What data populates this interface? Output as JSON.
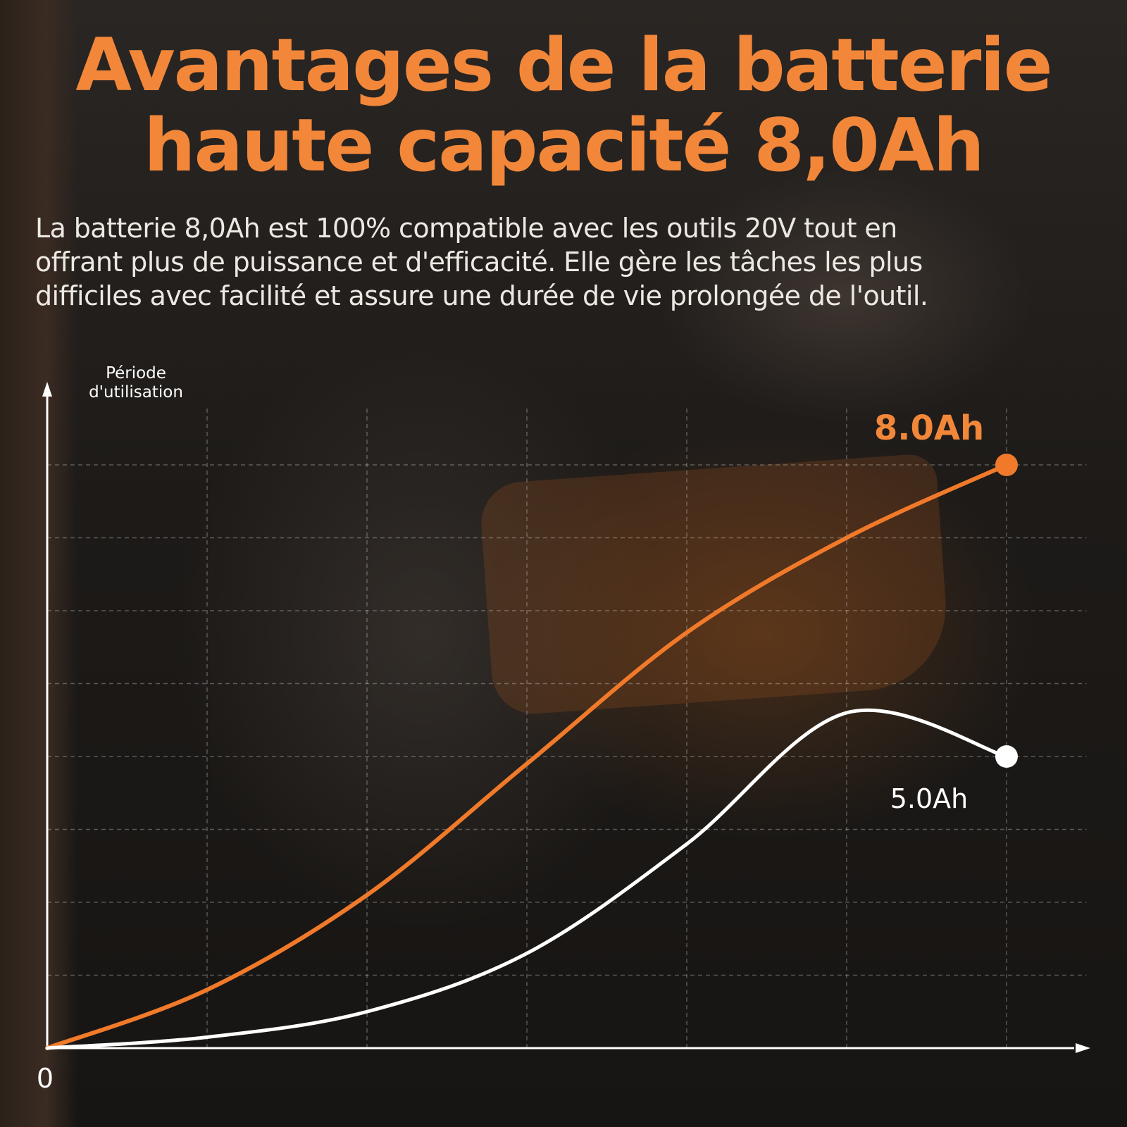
{
  "title_lines": [
    "Avantages de la batterie",
    "haute capacité 8,0Ah"
  ],
  "subtitle_lines": [
    "La batterie 8,0Ah est 100% compatible avec les outils 20V tout en",
    "offrant plus de puissance et d'efficacité. Elle gère les tâches les plus",
    "difficiles avec facilité et assure une durée de vie prolongée de l'outil."
  ],
  "chart_data": {
    "type": "line",
    "ylabel_lines": [
      "Période",
      "d'utilisation"
    ],
    "xlabel": "",
    "origin_label": "0",
    "xlim": [
      0,
      7
    ],
    "ylim": [
      0,
      8
    ],
    "grid": true,
    "series": [
      {
        "name": "8.0Ah",
        "color": "#f07a2a",
        "x": [
          0,
          1,
          2,
          3,
          4,
          5,
          6
        ],
        "y": [
          0,
          0.8,
          2.1,
          3.9,
          5.7,
          7.0,
          8.0
        ]
      },
      {
        "name": "5.0Ah",
        "color": "#ffffff",
        "x": [
          0,
          1,
          2,
          3,
          4,
          5,
          6
        ],
        "y": [
          0,
          0.15,
          0.5,
          1.3,
          2.8,
          4.6,
          4.0
        ]
      }
    ]
  }
}
